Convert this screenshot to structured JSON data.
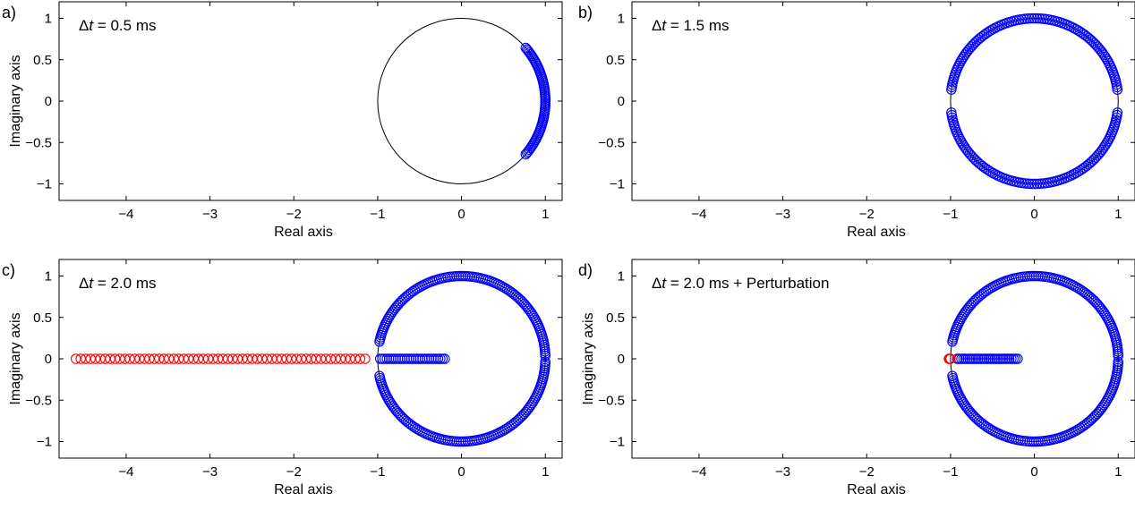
{
  "chart_data": [
    {
      "type": "scatter",
      "panel_label": "a)",
      "annotation_prefix": "Δ",
      "annotation_var": "t",
      "annotation_rest": " = 0.5 ms",
      "xlabel": "Real axis",
      "ylabel": "Imaginary axis",
      "xlim": [
        -4.8,
        1.2
      ],
      "ylim": [
        -1.2,
        1.2
      ],
      "xticks": [
        -4,
        -3,
        -2,
        -1,
        0,
        1
      ],
      "xtick_labels": [
        "−4",
        "−3",
        "−2",
        "−1",
        "0",
        "1"
      ],
      "yticks": [
        1,
        0.5,
        0,
        -0.5,
        -1
      ],
      "ytick_labels": [
        "1",
        "0.5",
        "0",
        "−0.5",
        "−1"
      ],
      "unit_circle": true,
      "grid": false,
      "series": [
        {
          "kind": "arc",
          "color": "#0000ff",
          "radius": 1.0,
          "angle_from_deg": -40,
          "angle_to_deg": 40,
          "count": 60
        }
      ]
    },
    {
      "type": "scatter",
      "panel_label": "b)",
      "annotation_prefix": "Δ",
      "annotation_var": "t",
      "annotation_rest": " = 1.5 ms",
      "xlabel": "Real axis",
      "ylabel": "",
      "xlim": [
        -4.8,
        1.2
      ],
      "ylim": [
        -1.2,
        1.2
      ],
      "xticks": [
        -4,
        -3,
        -2,
        -1,
        0,
        1
      ],
      "xtick_labels": [
        "−4",
        "−3",
        "−2",
        "−1",
        "0",
        "1"
      ],
      "yticks": [
        1,
        0.5,
        0,
        -0.5,
        -1
      ],
      "ytick_labels": [
        "1",
        "0.5",
        "0",
        "−0.5",
        "−1"
      ],
      "unit_circle": true,
      "grid": false,
      "series": [
        {
          "kind": "arc",
          "color": "#0000ff",
          "radius": 1.0,
          "angle_from_deg": 8,
          "angle_to_deg": 172,
          "count": 95
        },
        {
          "kind": "arc",
          "color": "#0000ff",
          "radius": 1.0,
          "angle_from_deg": 188,
          "angle_to_deg": 352,
          "count": 95
        }
      ]
    },
    {
      "type": "scatter",
      "panel_label": "c)",
      "annotation_prefix": "Δ",
      "annotation_var": "t",
      "annotation_rest": " = 2.0 ms",
      "xlabel": "Real axis",
      "ylabel": "Imaginary axis",
      "xlim": [
        -4.8,
        1.2
      ],
      "ylim": [
        -1.2,
        1.2
      ],
      "xticks": [
        -4,
        -3,
        -2,
        -1,
        0,
        1
      ],
      "xtick_labels": [
        "−4",
        "−3",
        "−2",
        "−1",
        "0",
        "1"
      ],
      "yticks": [
        1,
        0.5,
        0,
        -0.5,
        -1
      ],
      "ytick_labels": [
        "1",
        "0.5",
        "0",
        "−0.5",
        "−1"
      ],
      "unit_circle": true,
      "grid": false,
      "series": [
        {
          "kind": "arc",
          "color": "#0000ff",
          "radius": 1.0,
          "angle_from_deg": 2,
          "angle_to_deg": 168,
          "count": 110
        },
        {
          "kind": "arc",
          "color": "#0000ff",
          "radius": 1.0,
          "angle_from_deg": 192,
          "angle_to_deg": 358,
          "count": 110
        },
        {
          "kind": "line",
          "color": "#0000ff",
          "x_from": -0.97,
          "x_to": -0.2,
          "y": 0,
          "count": 30
        },
        {
          "kind": "line",
          "color": "#ff0000",
          "x_from": -4.6,
          "x_to": -1.15,
          "y": 0,
          "count": 60
        }
      ]
    },
    {
      "type": "scatter",
      "panel_label": "d)",
      "annotation_prefix": "Δ",
      "annotation_var": "t",
      "annotation_rest": " = 2.0 ms + Perturbation",
      "xlabel": "Real axis",
      "ylabel": "Imaginary axis",
      "xlim": [
        -4.8,
        1.2
      ],
      "ylim": [
        -1.2,
        1.2
      ],
      "xticks": [
        -4,
        -3,
        -2,
        -1,
        0,
        1
      ],
      "xtick_labels": [
        "−4",
        "−3",
        "−2",
        "−1",
        "0",
        "1"
      ],
      "yticks": [
        1,
        0.5,
        0,
        -0.5,
        -1
      ],
      "ytick_labels": [
        "1",
        "0.5",
        "0",
        "−0.5",
        "−1"
      ],
      "unit_circle": true,
      "grid": false,
      "series": [
        {
          "kind": "arc",
          "color": "#0000ff",
          "radius": 1.0,
          "angle_from_deg": 2,
          "angle_to_deg": 168,
          "count": 110
        },
        {
          "kind": "arc",
          "color": "#0000ff",
          "radius": 1.0,
          "angle_from_deg": 192,
          "angle_to_deg": 358,
          "count": 110
        },
        {
          "kind": "line",
          "color": "#0000ff",
          "x_from": -0.92,
          "x_to": -0.2,
          "y": 0,
          "count": 30
        },
        {
          "kind": "line",
          "color": "#ff0000",
          "x_from": -1.02,
          "x_to": -1.0,
          "y": 0,
          "count": 3
        }
      ]
    }
  ]
}
